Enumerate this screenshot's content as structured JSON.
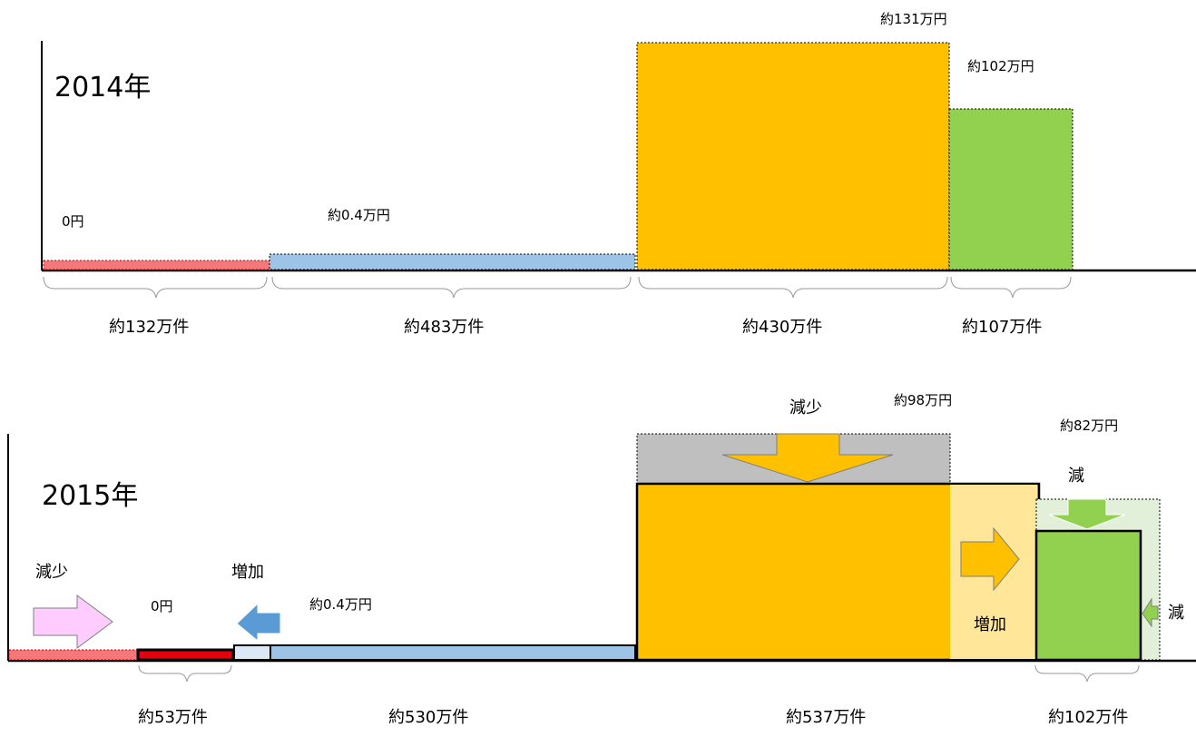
{
  "panel_2014": {
    "year": "2014年",
    "values": {
      "zero": "0円",
      "blue": "約0.4万円",
      "orange": "約131万円",
      "green": "約102万円"
    },
    "counts": {
      "red": "約132万件",
      "blue": "約483万件",
      "orange": "約430万件",
      "green": "約107万件"
    }
  },
  "panel_2015": {
    "year": "2015年",
    "values": {
      "zero": "0円",
      "blue": "約0.4万円",
      "orange": "約98万円",
      "green": "約82万円"
    },
    "counts": {
      "red": "約53万件",
      "blue": "約530万件",
      "orange": "約537万件",
      "green": "約102万件"
    },
    "annotations": {
      "decrease_left": "減少",
      "increase_left": "増加",
      "decrease_top": "減少",
      "increase_mid": "増加",
      "decrease_green_top": "減",
      "decrease_green_side": "減"
    }
  },
  "colors": {
    "red": "#f4777a",
    "red_strong": "#e3000f",
    "blue": "#9dc3e6",
    "blue_light": "#dce8f5",
    "orange": "#ffc000",
    "orange_light": "#ffe699",
    "green": "#92d050",
    "green_light": "#e2efd9",
    "gray": "#bfbfbf",
    "pink": "#ffccff",
    "arrow_blue": "#5b9bd5"
  }
}
